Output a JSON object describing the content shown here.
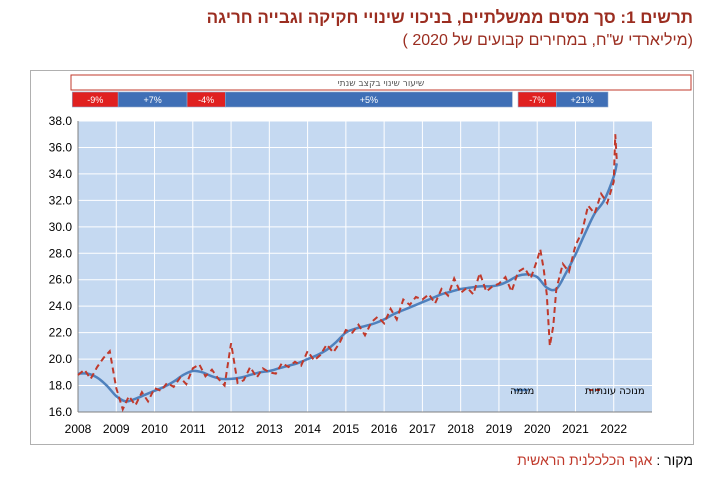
{
  "title": "תרשים 1: סך מסים ממשלתיים, בניכוי שינויי חקיקה וגבייה חריגה",
  "subtitle": "(מיליארדי ש\"ח, במחירים קבועים של 2020 )",
  "source_label": "מקור :",
  "source_value": "אגף הכלכלנית הראשית",
  "colors": {
    "plot_background": "#c5d9f1",
    "trend_line": "#4f81bd",
    "seasonal_line": "#c0392b",
    "band_red": "#e02020",
    "band_blue": "#3f6fb6",
    "band_header_border": "#c0392b"
  },
  "growth_band": {
    "header": "שיעור שינוי בקצב שנתי",
    "segments": [
      {
        "label": "-9%",
        "color": "red",
        "start": 2007.85,
        "end": 2009.05
      },
      {
        "label": "+7%",
        "color": "blue",
        "start": 2009.05,
        "end": 2010.85
      },
      {
        "label": "-4%",
        "color": "red",
        "start": 2010.85,
        "end": 2011.85
      },
      {
        "label": "+5%",
        "color": "blue",
        "start": 2011.85,
        "end": 2019.35
      },
      {
        "label": "-7%",
        "color": "red",
        "start": 2019.5,
        "end": 2020.5
      },
      {
        "label": "+21%",
        "color": "blue",
        "start": 2020.5,
        "end": 2021.85
      }
    ]
  },
  "chart_data": {
    "type": "line",
    "title": "",
    "xlabel": "",
    "ylabel": "",
    "ylim": [
      16.0,
      38.0
    ],
    "xlim": [
      2008,
      2023
    ],
    "y_ticks": [
      "16.0",
      "18.0",
      "20.0",
      "22.0",
      "24.0",
      "26.0",
      "28.0",
      "30.0",
      "32.0",
      "34.0",
      "36.0",
      "38.0"
    ],
    "x_ticks": [
      "2008",
      "2009",
      "2010",
      "2011",
      "2012",
      "2013",
      "2014",
      "2015",
      "2016",
      "2017",
      "2018",
      "2019",
      "2020",
      "2021",
      "2022"
    ],
    "grid": true,
    "legend_position": "bottom-right",
    "series": [
      {
        "name": "מגמה",
        "style": "solid",
        "x": [
          2008.0,
          2008.25,
          2008.5,
          2008.75,
          2009.0,
          2009.25,
          2009.5,
          2009.75,
          2010.0,
          2010.25,
          2010.5,
          2010.75,
          2011.0,
          2011.25,
          2011.5,
          2011.75,
          2012.0,
          2012.25,
          2012.5,
          2012.75,
          2013.0,
          2013.25,
          2013.5,
          2013.75,
          2014.0,
          2014.25,
          2014.5,
          2014.75,
          2015.0,
          2015.25,
          2015.5,
          2015.75,
          2016.0,
          2016.25,
          2016.5,
          2016.75,
          2017.0,
          2017.25,
          2017.5,
          2017.75,
          2018.0,
          2018.25,
          2018.5,
          2018.75,
          2019.0,
          2019.25,
          2019.5,
          2019.75,
          2020.0,
          2020.25,
          2020.5,
          2020.75,
          2021.0,
          2021.25,
          2021.5,
          2021.75,
          2022.0,
          2022.08
        ],
        "values": [
          18.9,
          18.9,
          18.6,
          18.0,
          17.2,
          16.8,
          17.0,
          17.3,
          17.6,
          17.9,
          18.3,
          18.8,
          19.1,
          19.0,
          18.7,
          18.5,
          18.5,
          18.6,
          18.8,
          19.0,
          19.1,
          19.3,
          19.5,
          19.7,
          20.0,
          20.3,
          20.7,
          21.3,
          22.0,
          22.3,
          22.5,
          22.7,
          23.0,
          23.4,
          23.7,
          24.0,
          24.3,
          24.6,
          24.9,
          25.1,
          25.3,
          25.4,
          25.5,
          25.5,
          25.6,
          25.9,
          26.3,
          26.4,
          26.2,
          25.4,
          25.3,
          26.5,
          27.9,
          29.5,
          31.0,
          32.0,
          33.8,
          34.8
        ]
      },
      {
        "name": "מנוכה עונתיות",
        "style": "dashed",
        "x": [
          2008.0,
          2008.17,
          2008.33,
          2008.5,
          2008.67,
          2008.83,
          2009.0,
          2009.17,
          2009.33,
          2009.5,
          2009.67,
          2009.83,
          2010.0,
          2010.17,
          2010.33,
          2010.5,
          2010.67,
          2010.83,
          2011.0,
          2011.17,
          2011.33,
          2011.5,
          2011.67,
          2011.83,
          2012.0,
          2012.17,
          2012.33,
          2012.5,
          2012.67,
          2012.83,
          2013.0,
          2013.17,
          2013.33,
          2013.5,
          2013.67,
          2013.83,
          2014.0,
          2014.17,
          2014.33,
          2014.5,
          2014.67,
          2014.83,
          2015.0,
          2015.17,
          2015.33,
          2015.5,
          2015.67,
          2015.83,
          2016.0,
          2016.17,
          2016.33,
          2016.5,
          2016.67,
          2016.83,
          2017.0,
          2017.17,
          2017.33,
          2017.5,
          2017.67,
          2017.83,
          2018.0,
          2018.17,
          2018.33,
          2018.5,
          2018.67,
          2018.83,
          2019.0,
          2019.17,
          2019.33,
          2019.5,
          2019.67,
          2019.83,
          2020.0,
          2020.08,
          2020.17,
          2020.25,
          2020.33,
          2020.42,
          2020.5,
          2020.67,
          2020.83,
          2021.0,
          2021.17,
          2021.33,
          2021.5,
          2021.67,
          2021.83,
          2022.0,
          2022.04,
          2022.08
        ],
        "values": [
          18.8,
          19.2,
          18.5,
          19.4,
          20.1,
          20.6,
          17.8,
          16.2,
          17.2,
          16.5,
          17.5,
          16.8,
          17.8,
          17.6,
          18.2,
          17.9,
          18.6,
          18.1,
          19.3,
          19.6,
          18.7,
          19.2,
          18.5,
          18.0,
          21.2,
          18.2,
          18.4,
          19.4,
          18.6,
          19.3,
          19.0,
          18.9,
          19.7,
          19.4,
          19.8,
          19.5,
          20.6,
          19.9,
          20.3,
          21.1,
          20.5,
          21.2,
          22.2,
          22.0,
          22.6,
          21.8,
          22.8,
          23.2,
          22.7,
          23.8,
          23.0,
          24.5,
          24.1,
          24.7,
          24.5,
          24.9,
          24.2,
          25.3,
          24.8,
          26.1,
          25.0,
          25.4,
          24.9,
          26.5,
          25.1,
          25.5,
          25.7,
          26.2,
          25.1,
          26.6,
          26.9,
          26.1,
          27.5,
          28.3,
          26.8,
          24.9,
          21.0,
          22.5,
          25.3,
          27.2,
          26.6,
          28.6,
          29.6,
          31.6,
          31.0,
          32.5,
          31.8,
          33.4,
          37.0,
          35.0
        ]
      }
    ]
  }
}
